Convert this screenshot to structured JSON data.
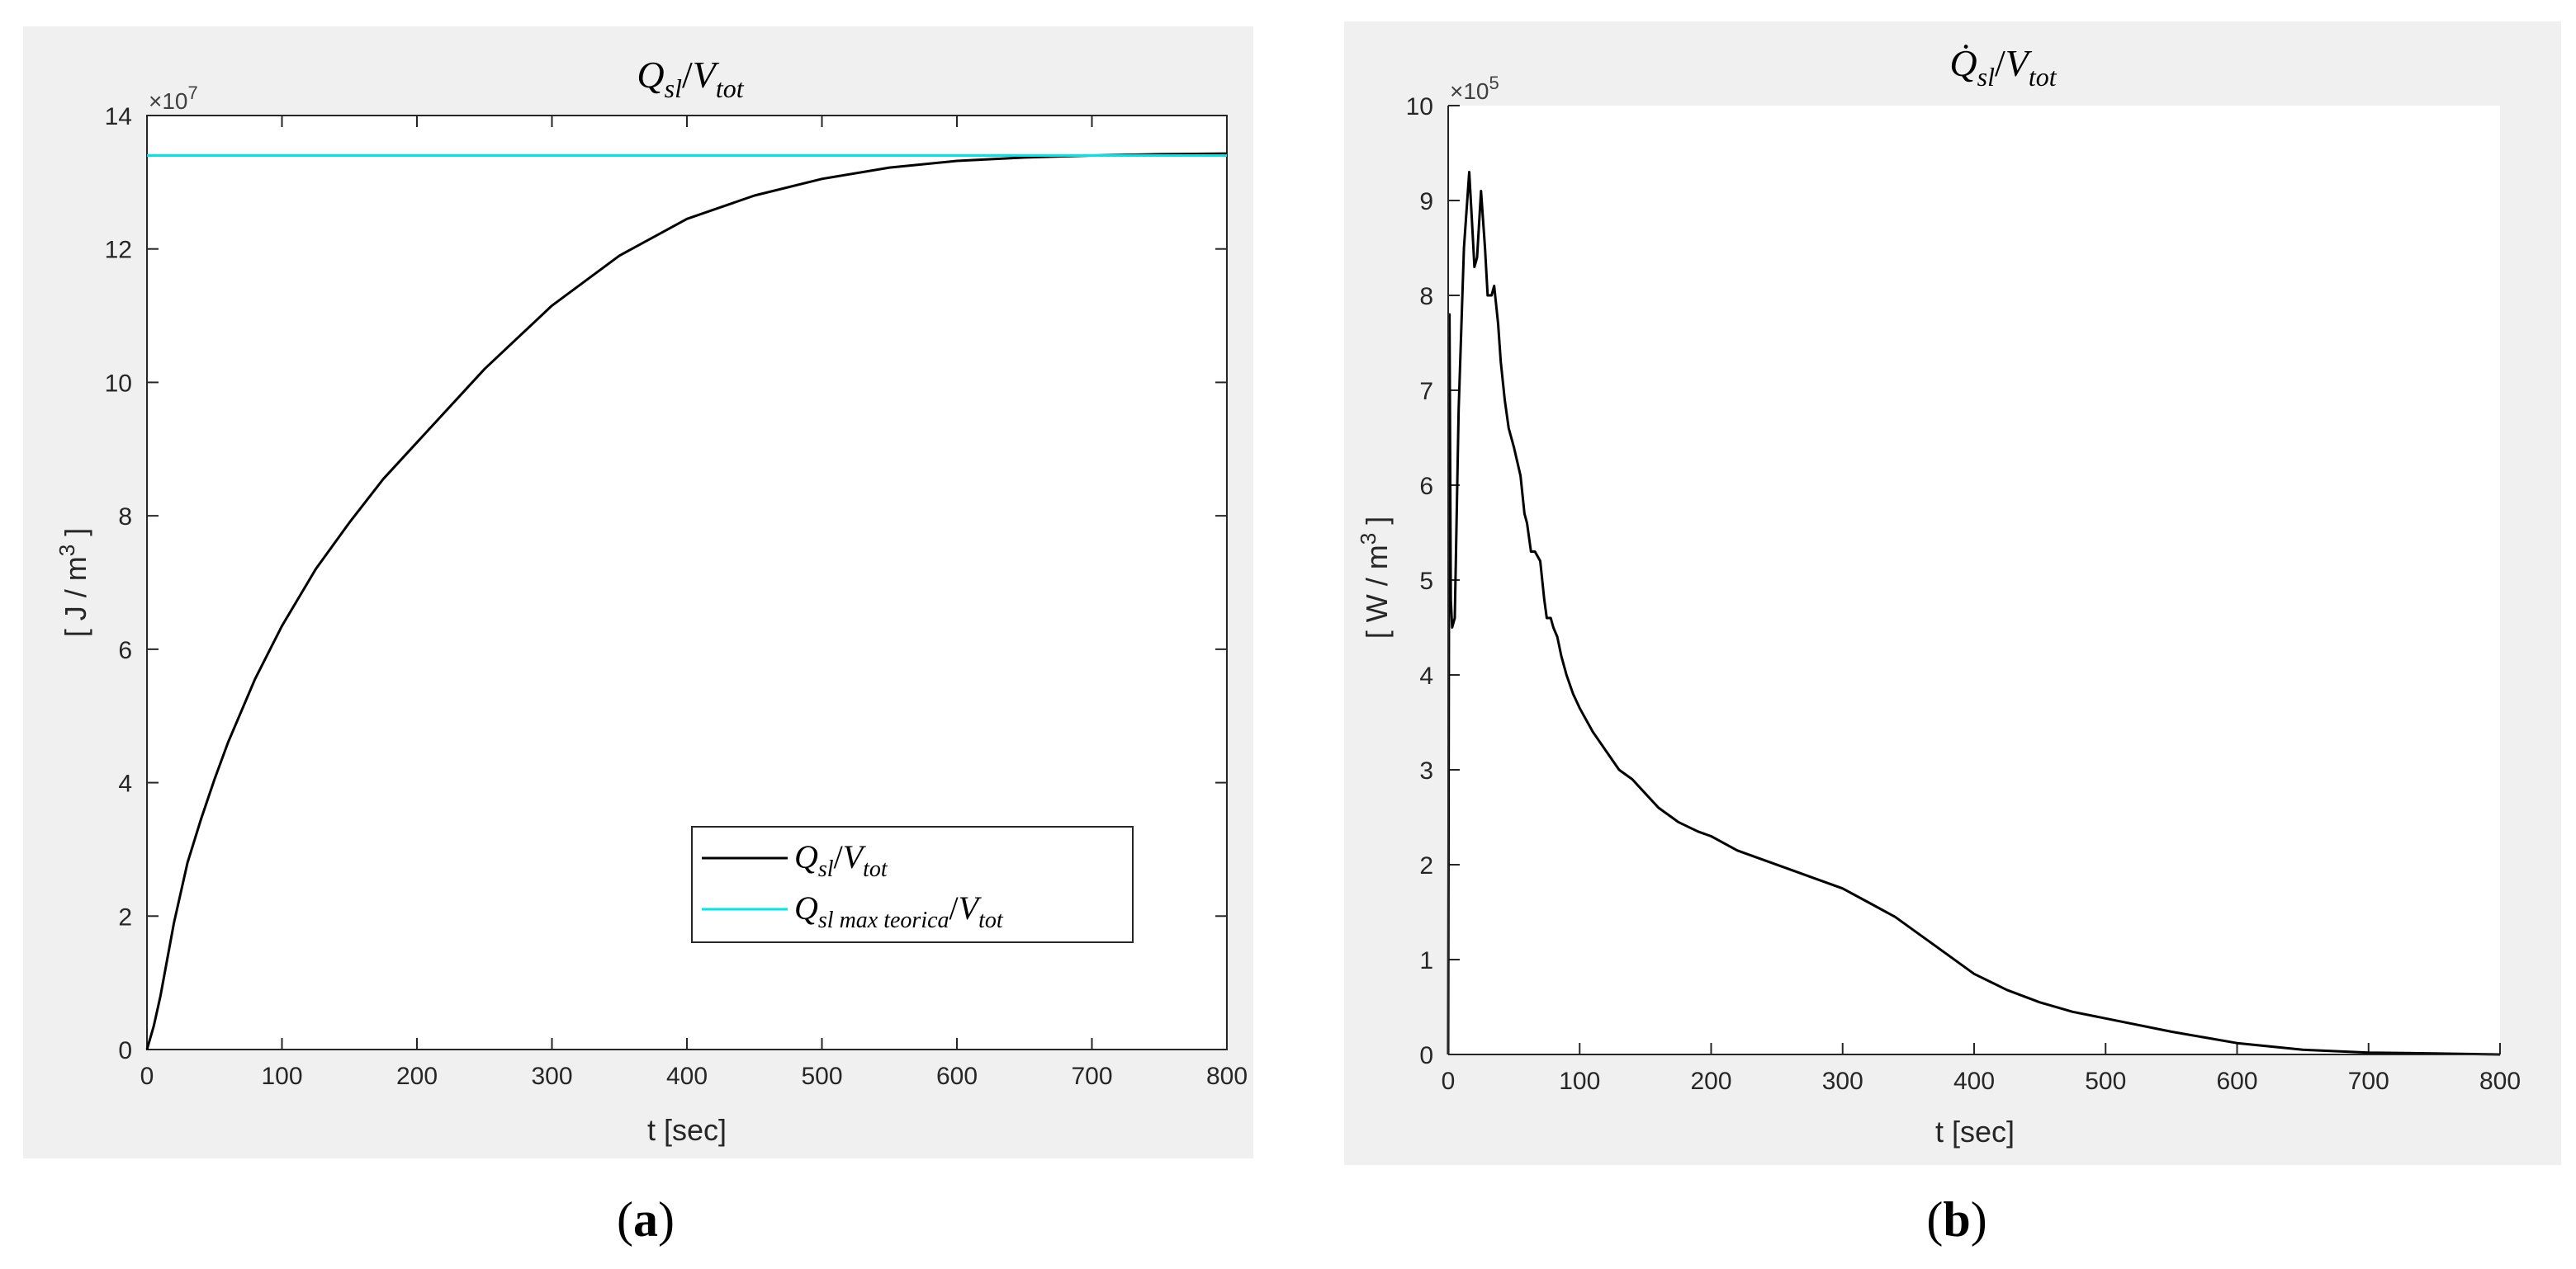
{
  "chart_data": [
    {
      "type": "line",
      "panel_label": "(a)",
      "title": "Q_sl / V_tot",
      "xlabel": "t [sec]",
      "ylabel": "[ J / m3 ]",
      "y_exponent": "×10^7",
      "xlim": [
        0,
        800
      ],
      "ylim": [
        0,
        14
      ],
      "xticks": [
        "0",
        "100",
        "200",
        "300",
        "400",
        "500",
        "600",
        "700",
        "800"
      ],
      "yticks": [
        "0",
        "2",
        "4",
        "6",
        "8",
        "10",
        "12",
        "14"
      ],
      "legend_position": "lower-right",
      "series": [
        {
          "name": "Q_sl / V_tot",
          "color": "#000000",
          "x": [
            0,
            5,
            10,
            20,
            30,
            40,
            50,
            60,
            80,
            100,
            125,
            150,
            175,
            200,
            250,
            300,
            350,
            400,
            450,
            500,
            550,
            600,
            650,
            700,
            750,
            800
          ],
          "y": [
            0,
            0.35,
            0.8,
            1.9,
            2.8,
            3.45,
            4.05,
            4.6,
            5.55,
            6.35,
            7.2,
            7.9,
            8.55,
            9.1,
            10.2,
            11.15,
            11.9,
            12.45,
            12.8,
            13.05,
            13.22,
            13.32,
            13.37,
            13.4,
            13.42,
            13.43
          ]
        },
        {
          "name": "Q_sl max teorica / V_tot",
          "color": "#00e5e5",
          "x": [
            0,
            800
          ],
          "y": [
            13.4,
            13.4
          ]
        }
      ]
    },
    {
      "type": "line",
      "panel_label": "(b)",
      "title": "Q̇_sl / V_tot",
      "xlabel": "t [sec]",
      "ylabel": "[ W / m3 ]",
      "y_exponent": "×10^5",
      "xlim": [
        0,
        800
      ],
      "ylim": [
        0,
        10
      ],
      "xticks": [
        "0",
        "100",
        "200",
        "300",
        "400",
        "500",
        "600",
        "700",
        "800"
      ],
      "yticks": [
        "0",
        "1",
        "2",
        "3",
        "4",
        "5",
        "6",
        "7",
        "8",
        "9",
        "10"
      ],
      "series": [
        {
          "name": "Q̇_sl / V_tot",
          "color": "#000000",
          "x": [
            0,
            1,
            2,
            3,
            5,
            8,
            12,
            16,
            18,
            20,
            22,
            25,
            28,
            30,
            33,
            35,
            38,
            40,
            43,
            46,
            50,
            55,
            58,
            60,
            63,
            66,
            70,
            73,
            75,
            78,
            80,
            83,
            86,
            90,
            95,
            100,
            110,
            120,
            130,
            140,
            150,
            160,
            175,
            190,
            200,
            220,
            240,
            260,
            280,
            300,
            320,
            340,
            360,
            380,
            400,
            425,
            450,
            475,
            500,
            550,
            600,
            650,
            700,
            750,
            800
          ],
          "y": [
            0,
            7.8,
            4.8,
            4.5,
            4.6,
            6.8,
            8.5,
            9.3,
            8.8,
            8.3,
            8.4,
            9.1,
            8.5,
            8.0,
            8.0,
            8.1,
            7.7,
            7.3,
            6.9,
            6.6,
            6.4,
            6.1,
            5.7,
            5.6,
            5.3,
            5.3,
            5.2,
            4.8,
            4.6,
            4.6,
            4.5,
            4.4,
            4.2,
            4.0,
            3.8,
            3.65,
            3.4,
            3.2,
            3.0,
            2.9,
            2.75,
            2.6,
            2.45,
            2.35,
            2.3,
            2.15,
            2.05,
            1.95,
            1.85,
            1.75,
            1.6,
            1.45,
            1.25,
            1.05,
            0.85,
            0.68,
            0.55,
            0.45,
            0.38,
            0.24,
            0.12,
            0.05,
            0.02,
            0.01,
            0.0
          ]
        }
      ]
    }
  ]
}
